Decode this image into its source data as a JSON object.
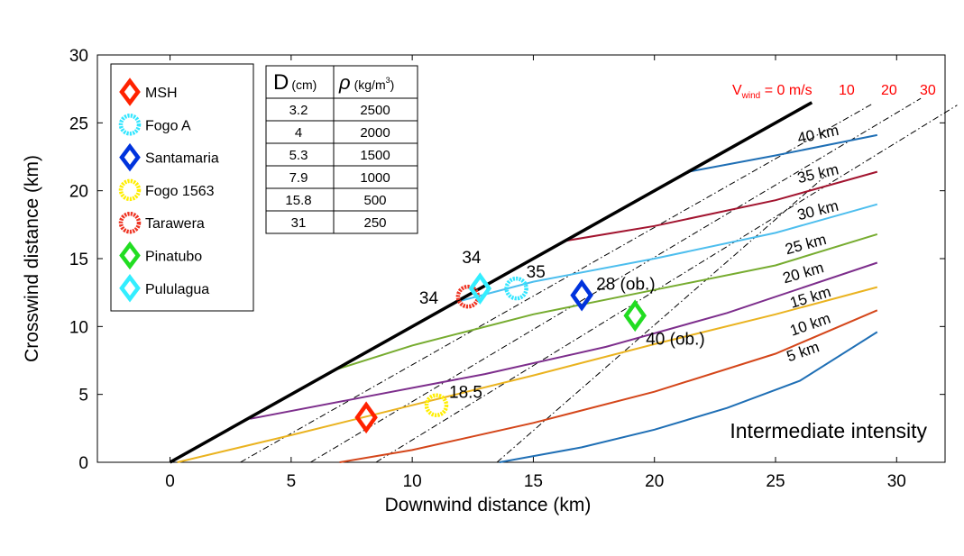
{
  "chart_data": {
    "type": "line",
    "title": "",
    "xlabel": "Downwind distance (km)",
    "ylabel": "Crosswind distance (km)",
    "xlim": [
      -3,
      32
    ],
    "ylim": [
      0,
      30
    ],
    "x_ticks": [
      0,
      5,
      10,
      15,
      20,
      25,
      30
    ],
    "y_ticks": [
      0,
      5,
      10,
      15,
      20,
      25,
      30
    ],
    "grid": false,
    "annotation": "Intermediate intensity",
    "colors": {
      "black": "#000000",
      "blue": "#1f6fb5",
      "red_brown": "#d4461a",
      "orange": "#eab320",
      "purple": "#7d2e8c",
      "green": "#77ac30",
      "light_blue": "#4dbeee",
      "maroon": "#a2142f",
      "wind_red": "#ff0000"
    },
    "wind_lines": {
      "label_prefix": "V",
      "label_sub": "wind",
      "label_suffix": " = 0 m/s",
      "labels": [
        "10",
        "20",
        "30"
      ],
      "lines": [
        {
          "name": "0 m/s",
          "points": [
            [
              0,
              0
            ],
            [
              26.5,
              26.5
            ]
          ]
        },
        {
          "name": "10",
          "points": [
            [
              2.9,
              0
            ],
            [
              29,
              26.4
            ]
          ]
        },
        {
          "name": "20",
          "points": [
            [
              5.8,
              0
            ],
            [
              31,
              26.8
            ]
          ]
        },
        {
          "name": "30",
          "points": [
            [
              8.5,
              0
            ],
            [
              32.5,
              26.3
            ]
          ]
        },
        {
          "name": "extra",
          "points": [
            [
              13.5,
              0
            ],
            [
              27,
              21
            ]
          ]
        }
      ]
    },
    "contours": [
      {
        "label": "5 km",
        "color": "#1f6fb5",
        "points": [
          [
            13.6,
            0
          ],
          [
            17,
            1.1
          ],
          [
            20,
            2.4
          ],
          [
            23,
            4.0
          ],
          [
            26,
            6.0
          ],
          [
            29.2,
            9.6
          ]
        ],
        "label_pos": [
          26.2,
          7.8
        ],
        "label_angle": -19
      },
      {
        "label": "10 km",
        "color": "#d4461a",
        "points": [
          [
            7,
            0
          ],
          [
            10,
            0.9
          ],
          [
            15,
            2.9
          ],
          [
            20,
            5.2
          ],
          [
            25,
            8.0
          ],
          [
            29.2,
            11.2
          ]
        ],
        "label_pos": [
          26.5,
          9.8
        ],
        "label_angle": -19
      },
      {
        "label": "15 km",
        "color": "#eab320",
        "points": [
          [
            0.3,
            0
          ],
          [
            5,
            2.0
          ],
          [
            10,
            4.2
          ],
          [
            15,
            6.4
          ],
          [
            20,
            8.7
          ],
          [
            25,
            10.9
          ],
          [
            29.2,
            12.9
          ]
        ],
        "label_pos": [
          26.5,
          11.8
        ],
        "label_angle": -17
      },
      {
        "label": "20 km",
        "color": "#7d2e8c",
        "points": [
          [
            3.3,
            3.2
          ],
          [
            8,
            4.8
          ],
          [
            13,
            6.5
          ],
          [
            18,
            8.5
          ],
          [
            23,
            11.0
          ],
          [
            29.2,
            14.7
          ]
        ],
        "label_pos": [
          26.2,
          13.6
        ],
        "label_angle": -16
      },
      {
        "label": "25 km",
        "color": "#77ac30",
        "points": [
          [
            6.8,
            6.8
          ],
          [
            10,
            8.6
          ],
          [
            15,
            10.9
          ],
          [
            20,
            12.7
          ],
          [
            25,
            14.5
          ],
          [
            29.2,
            16.8
          ]
        ],
        "label_pos": [
          26.3,
          15.7
        ],
        "label_angle": -15
      },
      {
        "label": "30 km",
        "color": "#4dbeee",
        "points": [
          [
            11.8,
            11.8
          ],
          [
            15,
            13.3
          ],
          [
            20,
            15.0
          ],
          [
            25,
            16.9
          ],
          [
            29.2,
            19.0
          ]
        ],
        "label_pos": [
          26.8,
          18.2
        ],
        "label_angle": -14
      },
      {
        "label": "35 km",
        "color": "#a2142f",
        "points": [
          [
            16.3,
            16.3
          ],
          [
            20,
            17.4
          ],
          [
            25,
            19.3
          ],
          [
            29.2,
            21.4
          ]
        ],
        "label_pos": [
          26.8,
          20.9
        ],
        "label_angle": -13
      },
      {
        "label": "40 km",
        "color": "#1f6fb5",
        "points": [
          [
            21.4,
            21.4
          ],
          [
            25,
            22.6
          ],
          [
            29.2,
            24.1
          ]
        ],
        "label_pos": [
          26.8,
          23.8
        ],
        "label_angle": -12
      }
    ],
    "observations": [
      {
        "name": "MSH",
        "marker": "diamond",
        "color": "#ff2200",
        "x": 8.1,
        "y": 3.3,
        "label": ""
      },
      {
        "name": "Fogo A",
        "marker": "circle",
        "color": "#33e6ff",
        "x": 14.3,
        "y": 12.8,
        "label": "35"
      },
      {
        "name": "Santamaria",
        "marker": "diamond",
        "color": "#0033dd",
        "x": 17.0,
        "y": 12.3,
        "label": "28 (ob.)"
      },
      {
        "name": "Fogo 1563",
        "marker": "circle",
        "color": "#ffee00",
        "x": 11.0,
        "y": 4.2,
        "label": "18.5"
      },
      {
        "name": "Tarawera",
        "marker": "circle",
        "color": "#ee3322",
        "x": 12.3,
        "y": 12.2,
        "label": "34"
      },
      {
        "name": "Pinatubo",
        "marker": "diamond",
        "color": "#22dd22",
        "x": 19.2,
        "y": 10.8,
        "label": "40 (ob.)"
      },
      {
        "name": "Pululagua",
        "marker": "diamond",
        "color": "#33eeff",
        "x": 12.8,
        "y": 12.8,
        "label": "34"
      }
    ],
    "legend": {
      "placement": "top-left",
      "entries": [
        {
          "name": "MSH",
          "marker": "diamond",
          "color": "#ff2200"
        },
        {
          "name": "Fogo A",
          "marker": "circle",
          "color": "#33e6ff"
        },
        {
          "name": "Santamaria",
          "marker": "diamond",
          "color": "#0033dd"
        },
        {
          "name": "Fogo 1563",
          "marker": "circle",
          "color": "#ffee00"
        },
        {
          "name": "Tarawera",
          "marker": "circle",
          "color": "#ee3322"
        },
        {
          "name": "Pinatubo",
          "marker": "diamond",
          "color": "#22dd22"
        },
        {
          "name": "Pululagua",
          "marker": "diamond",
          "color": "#33eeff"
        }
      ]
    },
    "table": {
      "header_d_symbol": "D",
      "header_d_unit": "(cm)",
      "header_rho_symbol": "ρ",
      "header_rho_unit": "(kg/m",
      "header_rho_sup": "3",
      "header_rho_close": ")",
      "rows": [
        [
          "3.2",
          "2500"
        ],
        [
          "4",
          "2000"
        ],
        [
          "5.3",
          "1500"
        ],
        [
          "7.9",
          "1000"
        ],
        [
          "15.8",
          "500"
        ],
        [
          "31",
          "250"
        ]
      ]
    }
  }
}
